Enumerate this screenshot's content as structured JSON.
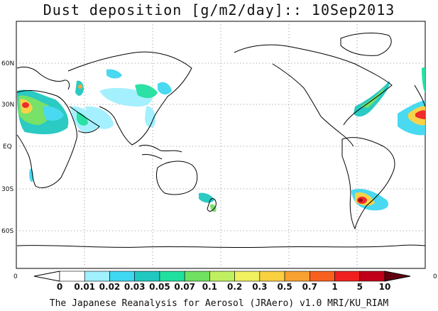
{
  "title": "Dust deposition [g/m2/day]:: 10Sep2013",
  "footer": "The Japanese Reanalysis for Aerosol (JRAero) v1.0 MRI/KU_RIAM",
  "lat_labels": [
    "60N",
    "30N",
    "EQ",
    "30S",
    "60S"
  ],
  "edge_labels": {
    "left": "0",
    "right": "0"
  },
  "colorbar": {
    "labels": [
      "0",
      "0.01",
      "0.02",
      "0.03",
      "0.05",
      "0.07",
      "0.1",
      "0.2",
      "0.3",
      "0.5",
      "0.7",
      "1",
      "5",
      "10"
    ],
    "colors": [
      "#ffffff",
      "#a0f0ff",
      "#40d8f0",
      "#20c8c0",
      "#20e0a0",
      "#70e060",
      "#c0f060",
      "#f0f060",
      "#f8d040",
      "#f8a030",
      "#f86020",
      "#f02020",
      "#c00018",
      "#900010",
      "#600010"
    ]
  }
}
